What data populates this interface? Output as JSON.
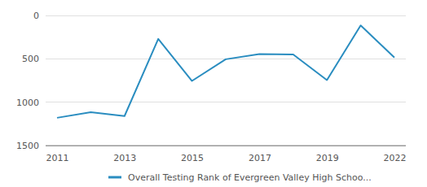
{
  "chart_data": {
    "type": "line",
    "categories": [
      "2011",
      null,
      "2013",
      null,
      "2015",
      null,
      "2017",
      null,
      "2019",
      null,
      "2022"
    ],
    "series": [
      {
        "name": "Overall Testing Rank of Evergreen Valley High Schoo...",
        "color": "#2a8dc0",
        "values": [
          1180,
          1115,
          1160,
          270,
          755,
          505,
          445,
          450,
          745,
          115,
          485
        ]
      }
    ],
    "ylim": [
      1500,
      0
    ],
    "yticks": [
      0,
      500,
      1000,
      1500
    ],
    "grid": true,
    "legend": "bottom"
  }
}
